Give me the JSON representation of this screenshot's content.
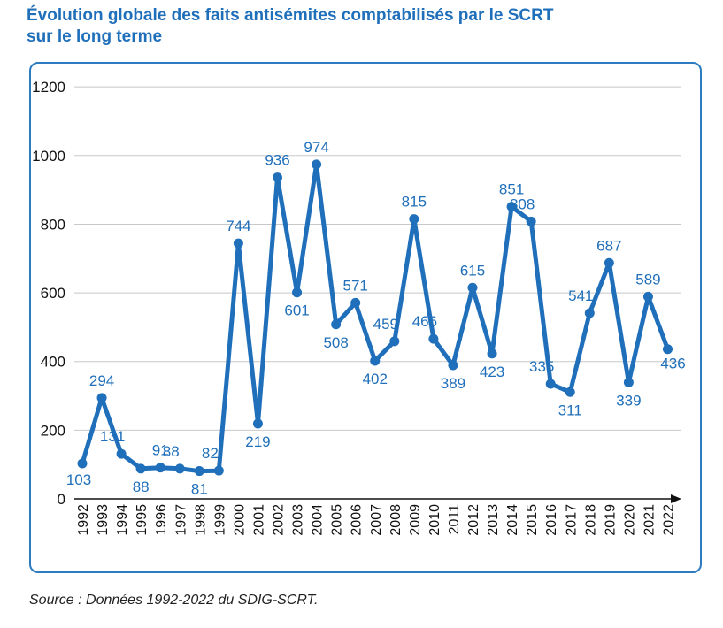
{
  "chart_data": {
    "type": "line",
    "title_lines": [
      "Évolution globale des faits antisémites comptabilisés par le SCRT",
      "sur le long terme"
    ],
    "x": [
      "1992",
      "1993",
      "1994",
      "1995",
      "1996",
      "1997",
      "1998",
      "1999",
      "2000",
      "2001",
      "2002",
      "2003",
      "2004",
      "2005",
      "2006",
      "2007",
      "2008",
      "2009",
      "2010",
      "2011",
      "2012",
      "2013",
      "2014",
      "2015",
      "2016",
      "2017",
      "2018",
      "2019",
      "2020",
      "2021",
      "2022"
    ],
    "values": [
      103,
      294,
      131,
      88,
      91,
      88,
      81,
      82,
      744,
      219,
      936,
      601,
      974,
      508,
      571,
      402,
      459,
      815,
      466,
      389,
      615,
      423,
      851,
      808,
      335,
      311,
      541,
      687,
      339,
      589,
      436
    ],
    "ylim": [
      0,
      1200
    ],
    "yticks": [
      0,
      200,
      400,
      600,
      800,
      1000,
      1200
    ],
    "grid": true,
    "color": "#1f6fba",
    "source": "Source : Données 1992-2022 du SDIG-SCRT."
  }
}
